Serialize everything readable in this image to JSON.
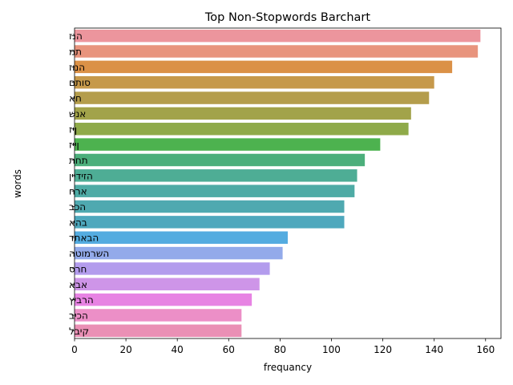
{
  "chart_data": {
    "type": "bar",
    "orientation": "horizontal",
    "title": "Top Non-Stopwords Barchart",
    "xlabel": "frequancy",
    "ylabel": "words",
    "xlim": [
      0,
      166
    ],
    "xticks": [
      0,
      20,
      40,
      60,
      80,
      100,
      120,
      140,
      160
    ],
    "grid": false,
    "categories": [
      "הנז",
      "תמ",
      "הנוז",
      "סותם",
      "חא",
      "אנש",
      "ןיז",
      "ןייז",
      "תחת",
      "הזידיין",
      "ארח",
      "הכב",
      "בהא",
      "הבאתד",
      "השרמוטה",
      "חרס",
      "אבא",
      "הרביץ",
      "הכיב",
      "קיבל"
    ],
    "values": [
      158,
      157,
      147,
      140,
      138,
      131,
      130,
      119,
      113,
      110,
      109,
      105,
      105,
      83,
      81,
      76,
      72,
      69,
      65,
      65
    ],
    "colors": [
      "#ec959d",
      "#e8947d",
      "#db9147",
      "#c6994b",
      "#b49d4c",
      "#a2a34a",
      "#8faa49",
      "#4db24f",
      "#4caf7b",
      "#4ead95",
      "#4eaba5",
      "#4fa9b0",
      "#4ea8bd",
      "#54ace0",
      "#93aaea",
      "#b39ced",
      "#ce95e8",
      "#e783e3",
      "#ec8fc7",
      "#ea90b5"
    ]
  }
}
